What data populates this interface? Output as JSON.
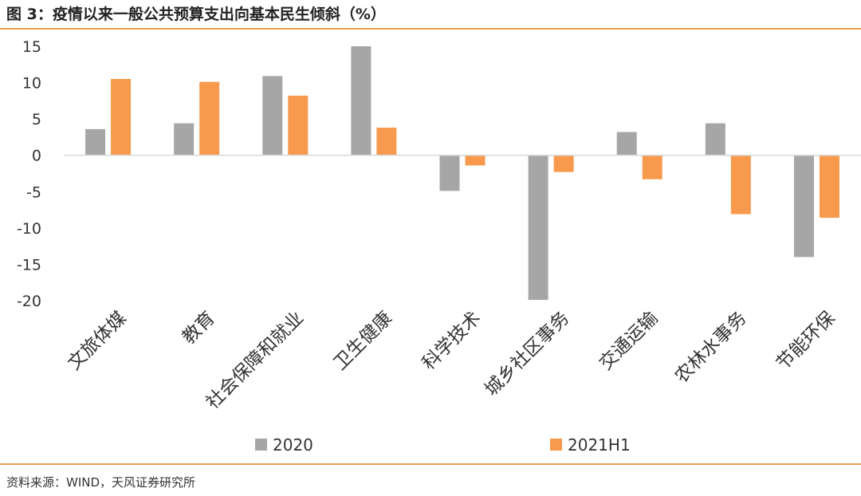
{
  "header": {
    "title": "图 3：疫情以来一般公共预算支出向基本民生倾斜（%）"
  },
  "footer": {
    "source": "资料来源：WIND，天风证券研究所"
  },
  "colors": {
    "rule": "#F0A050",
    "series_2020": "#A6A6A6",
    "series_2021H1": "#F79A4D",
    "zero_line": "#D9D9D9"
  },
  "chart_data": {
    "type": "bar",
    "title": "",
    "xlabel": "",
    "ylabel": "",
    "ylim": [
      -20,
      15
    ],
    "yticks": [
      15,
      10,
      5,
      0,
      -5,
      -10,
      -15,
      -20
    ],
    "grid": false,
    "legend_position": "bottom",
    "categories": [
      "文旅体媒",
      "教育",
      "社会保障和就业",
      "卫生健康",
      "科学技术",
      "城乡社区事务",
      "交通运输",
      "农林水事务",
      "节能环保"
    ],
    "series": [
      {
        "name": "2020",
        "values": [
          3.6,
          4.4,
          10.9,
          15.0,
          -4.9,
          -19.9,
          3.2,
          4.4,
          -14.0
        ]
      },
      {
        "name": "2021H1",
        "values": [
          10.5,
          10.1,
          8.2,
          3.8,
          -1.4,
          -2.3,
          -3.3,
          -8.1,
          -8.6
        ]
      }
    ]
  }
}
